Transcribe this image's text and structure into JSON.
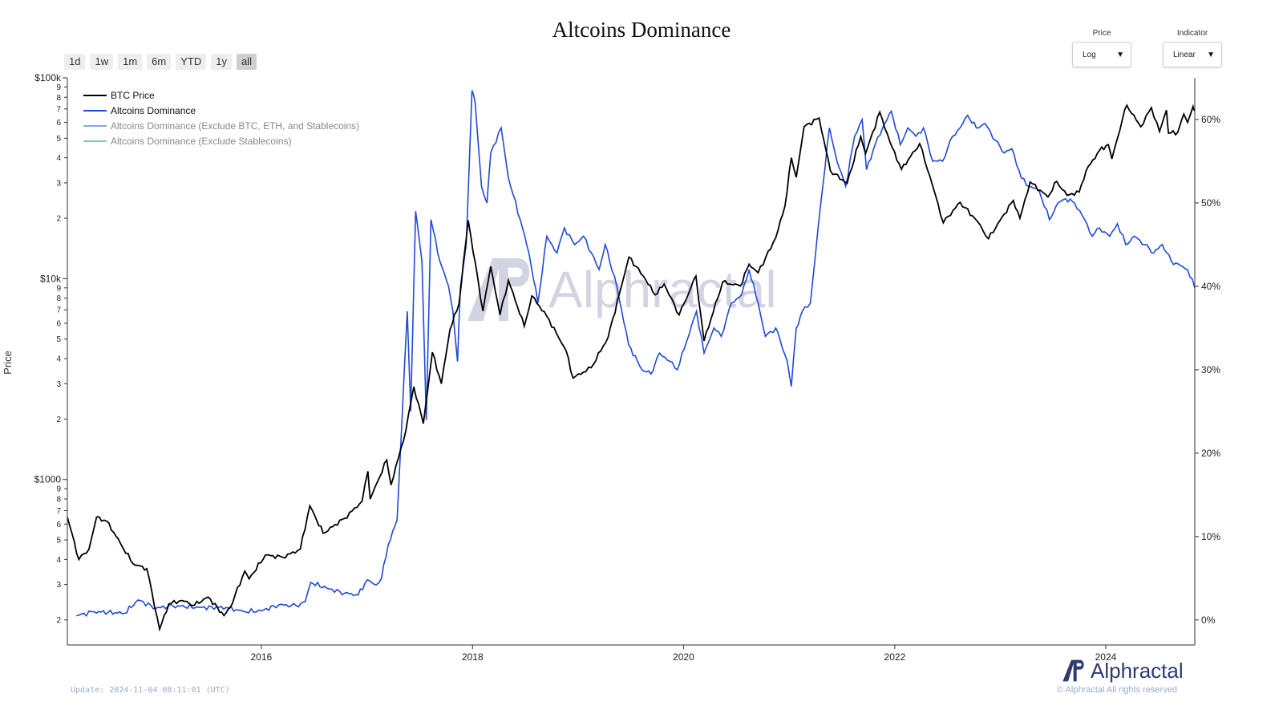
{
  "title": "Altcoins Dominance",
  "range_buttons": [
    {
      "label": "1d",
      "active": false
    },
    {
      "label": "1w",
      "active": false
    },
    {
      "label": "1m",
      "active": false
    },
    {
      "label": "6m",
      "active": false
    },
    {
      "label": "YTD",
      "active": false
    },
    {
      "label": "1y",
      "active": false
    },
    {
      "label": "all",
      "active": true
    }
  ],
  "controls": {
    "price": {
      "label": "Price",
      "value": "Log"
    },
    "indicator": {
      "label": "Indicator",
      "value": "Linear"
    }
  },
  "brand": {
    "name": "Alphractal",
    "copyright": "© Alphractal All rights reserved"
  },
  "footer": {
    "update": "Update: 2024-11-04 08:11:01 (UTC)"
  },
  "colors": {
    "btc": "#000000",
    "alt": "#1f49d6",
    "alt_ex": "#8ba6e6",
    "alt_ex_stable": "#7fc8b8",
    "brand": "#2f3a70"
  },
  "chart_data": {
    "type": "line",
    "title": "Altcoins Dominance",
    "ylabel": "Price",
    "x_range": [
      "2014-03-01",
      "2024-11-04"
    ],
    "x_ticks": [
      "2016",
      "2018",
      "2020",
      "2022",
      "2024"
    ],
    "y_left": {
      "scale": "log",
      "range": [
        150,
        100000
      ],
      "major_ticks": [
        {
          "value": 1000,
          "label": "$1000"
        },
        {
          "value": 10000,
          "label": "$10k"
        },
        {
          "value": 100000,
          "label": "$100k"
        }
      ]
    },
    "y_right": {
      "scale": "linear",
      "range": [
        -3,
        65
      ],
      "ticks": [
        0,
        10,
        20,
        30,
        40,
        50,
        60
      ],
      "tick_suffix": "%"
    },
    "legend_position": "top-left",
    "series": [
      {
        "name": "BTC Price",
        "axis": "left",
        "points": [
          [
            "2014-03-01",
            650
          ],
          [
            "2014-04-10",
            400
          ],
          [
            "2014-05-15",
            450
          ],
          [
            "2014-06-10",
            650
          ],
          [
            "2014-07-15",
            620
          ],
          [
            "2014-09-01",
            480
          ],
          [
            "2014-10-15",
            380
          ],
          [
            "2014-12-01",
            360
          ],
          [
            "2015-01-14",
            180
          ],
          [
            "2015-02-15",
            240
          ],
          [
            "2015-04-01",
            250
          ],
          [
            "2015-05-15",
            237
          ],
          [
            "2015-07-01",
            260
          ],
          [
            "2015-08-25",
            210
          ],
          [
            "2015-09-15",
            230
          ],
          [
            "2015-11-05",
            350
          ],
          [
            "2015-11-20",
            320
          ],
          [
            "2016-01-15",
            420
          ],
          [
            "2016-03-15",
            410
          ],
          [
            "2016-05-15",
            450
          ],
          [
            "2016-06-17",
            740
          ],
          [
            "2016-08-02",
            540
          ],
          [
            "2016-10-15",
            640
          ],
          [
            "2016-12-15",
            780
          ],
          [
            "2017-01-04",
            1100
          ],
          [
            "2017-01-12",
            800
          ],
          [
            "2017-03-10",
            1250
          ],
          [
            "2017-03-25",
            940
          ],
          [
            "2017-05-15",
            1750
          ],
          [
            "2017-06-12",
            2900
          ],
          [
            "2017-07-15",
            1900
          ],
          [
            "2017-08-15",
            4300
          ],
          [
            "2017-09-15",
            3000
          ],
          [
            "2017-10-15",
            5600
          ],
          [
            "2017-11-15",
            7500
          ],
          [
            "2017-12-17",
            19500
          ],
          [
            "2018-02-06",
            6900
          ],
          [
            "2018-03-05",
            11500
          ],
          [
            "2018-04-06",
            6600
          ],
          [
            "2018-05-05",
            9800
          ],
          [
            "2018-06-29",
            5800
          ],
          [
            "2018-07-25",
            8200
          ],
          [
            "2018-09-15",
            6500
          ],
          [
            "2018-11-20",
            4400
          ],
          [
            "2018-12-15",
            3200
          ],
          [
            "2019-02-15",
            3600
          ],
          [
            "2019-04-15",
            5100
          ],
          [
            "2019-06-26",
            12800
          ],
          [
            "2019-08-15",
            10300
          ],
          [
            "2019-09-25",
            8300
          ],
          [
            "2019-10-26",
            9400
          ],
          [
            "2019-12-17",
            6600
          ],
          [
            "2020-02-13",
            10300
          ],
          [
            "2020-03-12",
            4900
          ],
          [
            "2020-05-15",
            9600
          ],
          [
            "2020-07-15",
            9200
          ],
          [
            "2020-08-15",
            11800
          ],
          [
            "2020-09-15",
            10700
          ],
          [
            "2020-11-15",
            16000
          ],
          [
            "2020-12-17",
            23000
          ],
          [
            "2021-01-08",
            40000
          ],
          [
            "2021-01-25",
            32000
          ],
          [
            "2021-02-21",
            57000
          ],
          [
            "2021-04-14",
            63000
          ],
          [
            "2021-05-23",
            34500
          ],
          [
            "2021-07-20",
            29800
          ],
          [
            "2021-09-05",
            51000
          ],
          [
            "2021-09-22",
            42000
          ],
          [
            "2021-11-10",
            67500
          ],
          [
            "2021-12-15",
            48000
          ],
          [
            "2022-01-24",
            35000
          ],
          [
            "2022-03-28",
            47000
          ],
          [
            "2022-05-12",
            29000
          ],
          [
            "2022-06-18",
            19000
          ],
          [
            "2022-08-15",
            24000
          ],
          [
            "2022-10-15",
            19200
          ],
          [
            "2022-11-21",
            15800
          ],
          [
            "2023-01-15",
            21000
          ],
          [
            "2023-02-15",
            24500
          ],
          [
            "2023-03-10",
            20000
          ],
          [
            "2023-04-14",
            30300
          ],
          [
            "2023-06-15",
            25500
          ],
          [
            "2023-07-15",
            30500
          ],
          [
            "2023-08-20",
            26000
          ],
          [
            "2023-10-01",
            27000
          ],
          [
            "2023-10-25",
            34500
          ],
          [
            "2023-12-10",
            43500
          ],
          [
            "2024-01-10",
            46500
          ],
          [
            "2024-01-22",
            39500
          ],
          [
            "2024-02-28",
            62500
          ],
          [
            "2024-03-14",
            73000
          ],
          [
            "2024-05-01",
            57000
          ],
          [
            "2024-06-07",
            71000
          ],
          [
            "2024-07-05",
            54000
          ],
          [
            "2024-07-29",
            69000
          ],
          [
            "2024-08-05",
            53000
          ],
          [
            "2024-09-06",
            53500
          ],
          [
            "2024-09-27",
            66000
          ],
          [
            "2024-10-10",
            60000
          ],
          [
            "2024-10-29",
            72000
          ],
          [
            "2024-11-04",
            68500
          ]
        ]
      },
      {
        "name": "Altcoins Dominance",
        "axis": "right",
        "points": [
          [
            "2014-04-01",
            0.5
          ],
          [
            "2014-06-01",
            1.0
          ],
          [
            "2014-09-15",
            0.8
          ],
          [
            "2014-11-01",
            2.4
          ],
          [
            "2015-01-01",
            1.4
          ],
          [
            "2015-03-01",
            1.7
          ],
          [
            "2015-06-01",
            1.5
          ],
          [
            "2015-09-01",
            1.5
          ],
          [
            "2015-11-01",
            1.0
          ],
          [
            "2016-01-01",
            1.1
          ],
          [
            "2016-03-01",
            1.8
          ],
          [
            "2016-05-01",
            1.7
          ],
          [
            "2016-06-01",
            2.2
          ],
          [
            "2016-06-20",
            4.5
          ],
          [
            "2016-08-15",
            3.8
          ],
          [
            "2016-10-15",
            3.2
          ],
          [
            "2016-12-01",
            3.0
          ],
          [
            "2017-01-01",
            4.8
          ],
          [
            "2017-02-01",
            4.2
          ],
          [
            "2017-02-20",
            5.0
          ],
          [
            "2017-03-15",
            9.0
          ],
          [
            "2017-04-15",
            12.0
          ],
          [
            "2017-05-20",
            37.0
          ],
          [
            "2017-06-01",
            25.0
          ],
          [
            "2017-06-18",
            49.0
          ],
          [
            "2017-07-10",
            43.0
          ],
          [
            "2017-07-25",
            24.0
          ],
          [
            "2017-08-10",
            48.0
          ],
          [
            "2017-09-10",
            43.0
          ],
          [
            "2017-10-10",
            40.0
          ],
          [
            "2017-10-25",
            37.0
          ],
          [
            "2017-11-10",
            31.0
          ],
          [
            "2017-11-20",
            40.0
          ],
          [
            "2017-12-10",
            45.0
          ],
          [
            "2017-12-30",
            63.5
          ],
          [
            "2018-01-10",
            62.0
          ],
          [
            "2018-02-01",
            52.0
          ],
          [
            "2018-02-20",
            50.0
          ],
          [
            "2018-03-05",
            56.0
          ],
          [
            "2018-04-10",
            59.0
          ],
          [
            "2018-05-05",
            53.0
          ],
          [
            "2018-06-15",
            48.0
          ],
          [
            "2018-07-15",
            44.0
          ],
          [
            "2018-08-15",
            38.0
          ],
          [
            "2018-09-15",
            46.0
          ],
          [
            "2018-10-20",
            44.0
          ],
          [
            "2018-11-15",
            47.0
          ],
          [
            "2018-12-20",
            45.0
          ],
          [
            "2019-01-20",
            46.0
          ],
          [
            "2019-03-15",
            42.0
          ],
          [
            "2019-04-05",
            45.0
          ],
          [
            "2019-05-15",
            40.0
          ],
          [
            "2019-06-25",
            33.0
          ],
          [
            "2019-08-10",
            30.0
          ],
          [
            "2019-09-10",
            29.5
          ],
          [
            "2019-10-10",
            32.0
          ],
          [
            "2019-11-15",
            31.0
          ],
          [
            "2019-12-10",
            30.0
          ],
          [
            "2020-02-15",
            37.0
          ],
          [
            "2020-03-12",
            32.0
          ],
          [
            "2020-04-15",
            35.0
          ],
          [
            "2020-05-10",
            34.0
          ],
          [
            "2020-06-15",
            38.0
          ],
          [
            "2020-07-20",
            39.0
          ],
          [
            "2020-08-15",
            42.0
          ],
          [
            "2020-09-15",
            38.0
          ],
          [
            "2020-10-10",
            34.0
          ],
          [
            "2020-11-15",
            35.0
          ],
          [
            "2020-12-25",
            31.0
          ],
          [
            "2021-01-08",
            28.0
          ],
          [
            "2021-01-25",
            35.0
          ],
          [
            "2021-02-15",
            37.0
          ],
          [
            "2021-03-15",
            38.0
          ],
          [
            "2021-04-20",
            50.0
          ],
          [
            "2021-05-20",
            59.0
          ],
          [
            "2021-06-15",
            55.0
          ],
          [
            "2021-07-15",
            52.0
          ],
          [
            "2021-08-15",
            58.0
          ],
          [
            "2021-09-10",
            60.0
          ],
          [
            "2021-09-25",
            54.0
          ],
          [
            "2021-10-25",
            57.0
          ],
          [
            "2021-11-20",
            59.0
          ],
          [
            "2021-12-20",
            61.0
          ],
          [
            "2022-01-20",
            57.0
          ],
          [
            "2022-02-15",
            59.0
          ],
          [
            "2022-03-15",
            58.0
          ],
          [
            "2022-04-10",
            59.0
          ],
          [
            "2022-05-12",
            55.0
          ],
          [
            "2022-06-15",
            55.0
          ],
          [
            "2022-07-20",
            58.0
          ],
          [
            "2022-08-15",
            59.0
          ],
          [
            "2022-09-10",
            60.5
          ],
          [
            "2022-10-10",
            59.0
          ],
          [
            "2022-11-10",
            59.5
          ],
          [
            "2022-12-15",
            57.5
          ],
          [
            "2023-01-15",
            56.0
          ],
          [
            "2023-02-10",
            56.5
          ],
          [
            "2023-03-15",
            53.0
          ],
          [
            "2023-04-10",
            52.0
          ],
          [
            "2023-05-15",
            51.5
          ],
          [
            "2023-06-20",
            48.0
          ],
          [
            "2023-07-20",
            50.0
          ],
          [
            "2023-08-15",
            50.5
          ],
          [
            "2023-09-15",
            50.0
          ],
          [
            "2023-10-20",
            48.0
          ],
          [
            "2023-11-15",
            46.0
          ],
          [
            "2023-12-10",
            47.0
          ],
          [
            "2024-01-15",
            46.0
          ],
          [
            "2024-02-10",
            47.5
          ],
          [
            "2024-03-10",
            45.0
          ],
          [
            "2024-04-10",
            46.0
          ],
          [
            "2024-05-15",
            45.0
          ],
          [
            "2024-06-15",
            44.0
          ],
          [
            "2024-07-15",
            45.0
          ],
          [
            "2024-08-15",
            43.0
          ],
          [
            "2024-09-15",
            42.5
          ],
          [
            "2024-10-10",
            42.0
          ],
          [
            "2024-11-04",
            39.8
          ]
        ]
      },
      {
        "name": "Altcoins Dominance (Exclude BTC, ETH, and Stablecoins)",
        "axis": "right",
        "points": []
      },
      {
        "name": "Altcoins Dominance (Exclude Stablecoins)",
        "axis": "right",
        "points": []
      }
    ]
  }
}
